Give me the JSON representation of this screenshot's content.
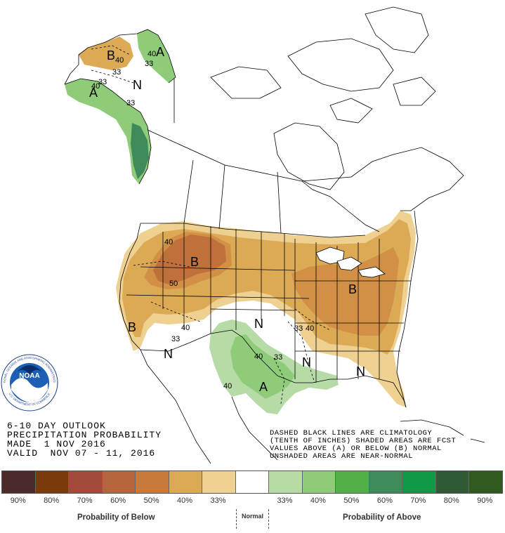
{
  "title": {
    "line1": "6-10 DAY OUTLOOK",
    "line2": "PRECIPITATION PROBABILITY",
    "line3": "MADE  1 NOV 2016",
    "line4": "VALID  NOV 07 - 11, 2016"
  },
  "notes": {
    "line1": "DASHED BLACK LINES ARE CLIMATOLOGY",
    "line2": "(TENTH OF INCHES) SHADED AREAS ARE FCST",
    "line3": "VALUES ABOVE (A) OR BELOW (B) NORMAL",
    "line4": "UNSHADED AREAS ARE NEAR-NORMAL"
  },
  "logo": {
    "org_text": "NATIONAL OCEANIC AND ATMOSPHERIC ADMINISTRATION",
    "dept_text": "U.S. DEPARTMENT OF COMMERCE",
    "center_text": "NOAA"
  },
  "map_labels": {
    "b_alaska": "B",
    "a_alaska_ne": "A",
    "a_alaska_se": "A",
    "n_alaska": "N",
    "b_northwest": "B",
    "b_california": "B",
    "b_east": "B",
    "n_southwest": "N",
    "n_plains": "N",
    "n_gulf": "N",
    "n_southeast": "N",
    "a_texas": "A"
  },
  "contour_labels": {
    "c40_ak1": "40",
    "c33_ak1": "33",
    "c40_ak2": "40",
    "c33_ak2": "33",
    "c40_ak3": "40",
    "c33_ak3": "33",
    "c33_ak4": "33",
    "c40_nw": "40",
    "c50_nw": "50",
    "c40_sw": "40",
    "c33_sw": "33",
    "c33_plains": "33",
    "c40_plains": "40",
    "c40_tx": "40",
    "c33_tx": "33",
    "c40_tx2": "40"
  },
  "legend": {
    "colors": [
      "#4d2a2a",
      "#7a3a0a",
      "#a34a3a",
      "#b5653a",
      "#c87a3a",
      "#dcaa55",
      "#eed090",
      "#ffffff",
      "#b6dba6",
      "#8fcc7a",
      "#52b049",
      "#3f8a5a",
      "#109a48",
      "#2e5a36",
      "#2f5a1f"
    ],
    "percent_labels": [
      "90%",
      "80%",
      "70%",
      "60%",
      "50%",
      "40%",
      "33%",
      "33%",
      "40%",
      "50%",
      "60%",
      "70%",
      "80%",
      "90%"
    ],
    "below_caption": "Probability of Below",
    "normal_caption": "Normal",
    "above_caption": "Probability of Above"
  }
}
